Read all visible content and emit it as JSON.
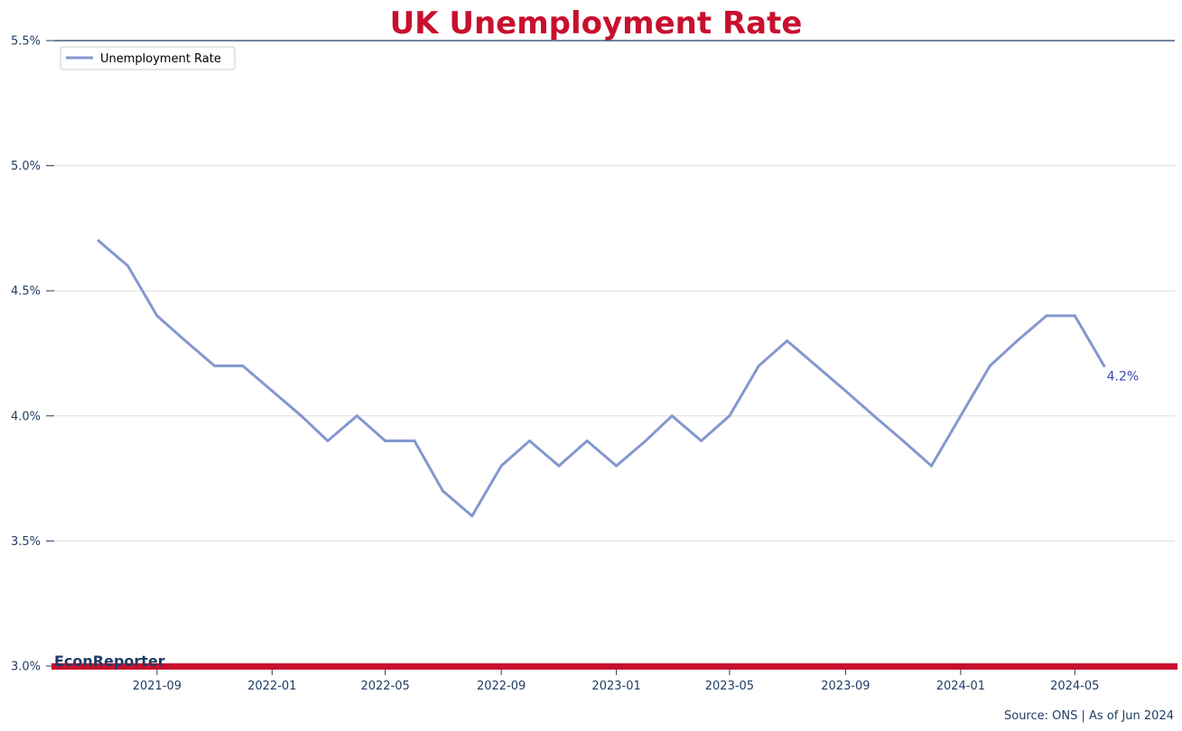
{
  "chart_data": {
    "type": "line",
    "title": "UK Unemployment Rate",
    "xlabel": "",
    "ylabel": "",
    "ylim": [
      3.0,
      5.5
    ],
    "xlim": [
      "2021-05-15",
      "2024-08-15"
    ],
    "grid": "horizontal",
    "legend_position": "top-left",
    "series": [
      {
        "name": "Unemployment Rate",
        "x": [
          "2021-07",
          "2021-08",
          "2021-09",
          "2021-10",
          "2021-11",
          "2021-12",
          "2022-01",
          "2022-02",
          "2022-03",
          "2022-04",
          "2022-05",
          "2022-06",
          "2022-07",
          "2022-08",
          "2022-09",
          "2022-10",
          "2022-11",
          "2022-12",
          "2023-01",
          "2023-02",
          "2023-03",
          "2023-04",
          "2023-05",
          "2023-06",
          "2023-07",
          "2023-08",
          "2023-09",
          "2023-10",
          "2023-11",
          "2023-12",
          "2024-01",
          "2024-02",
          "2024-03",
          "2024-04",
          "2024-05",
          "2024-06"
        ],
        "y": [
          4.7,
          4.6,
          4.4,
          4.3,
          4.2,
          4.2,
          4.1,
          4.0,
          3.9,
          4.0,
          3.9,
          3.9,
          3.7,
          3.6,
          3.8,
          3.9,
          3.8,
          3.9,
          3.8,
          3.9,
          4.0,
          3.9,
          4.0,
          4.2,
          4.3,
          4.2,
          4.1,
          4.0,
          3.9,
          3.8,
          4.0,
          4.2,
          4.3,
          4.4,
          4.4,
          4.2
        ]
      }
    ],
    "yticks": [
      3.0,
      3.5,
      4.0,
      4.5,
      5.0,
      5.5
    ],
    "ytick_labels": [
      "3.0%",
      "3.5%",
      "4.0%",
      "4.5%",
      "5.0%",
      "5.5%"
    ],
    "xticks": [
      "2021-09",
      "2022-01",
      "2022-05",
      "2022-09",
      "2023-01",
      "2023-05",
      "2023-09",
      "2024-01",
      "2024-05"
    ],
    "last_value_label": "4.2%",
    "colors": {
      "title": "#c8102e",
      "line": "#8497cf",
      "axis_text": "#1f3c64",
      "baseline_bar": "#c8102e",
      "top_rule": "#1f3c64",
      "grid": "#dddddd",
      "end_label": "#3949ab"
    }
  },
  "branding": {
    "name": "EconReporter"
  },
  "source_note": "Source: ONS | As of Jun 2024"
}
